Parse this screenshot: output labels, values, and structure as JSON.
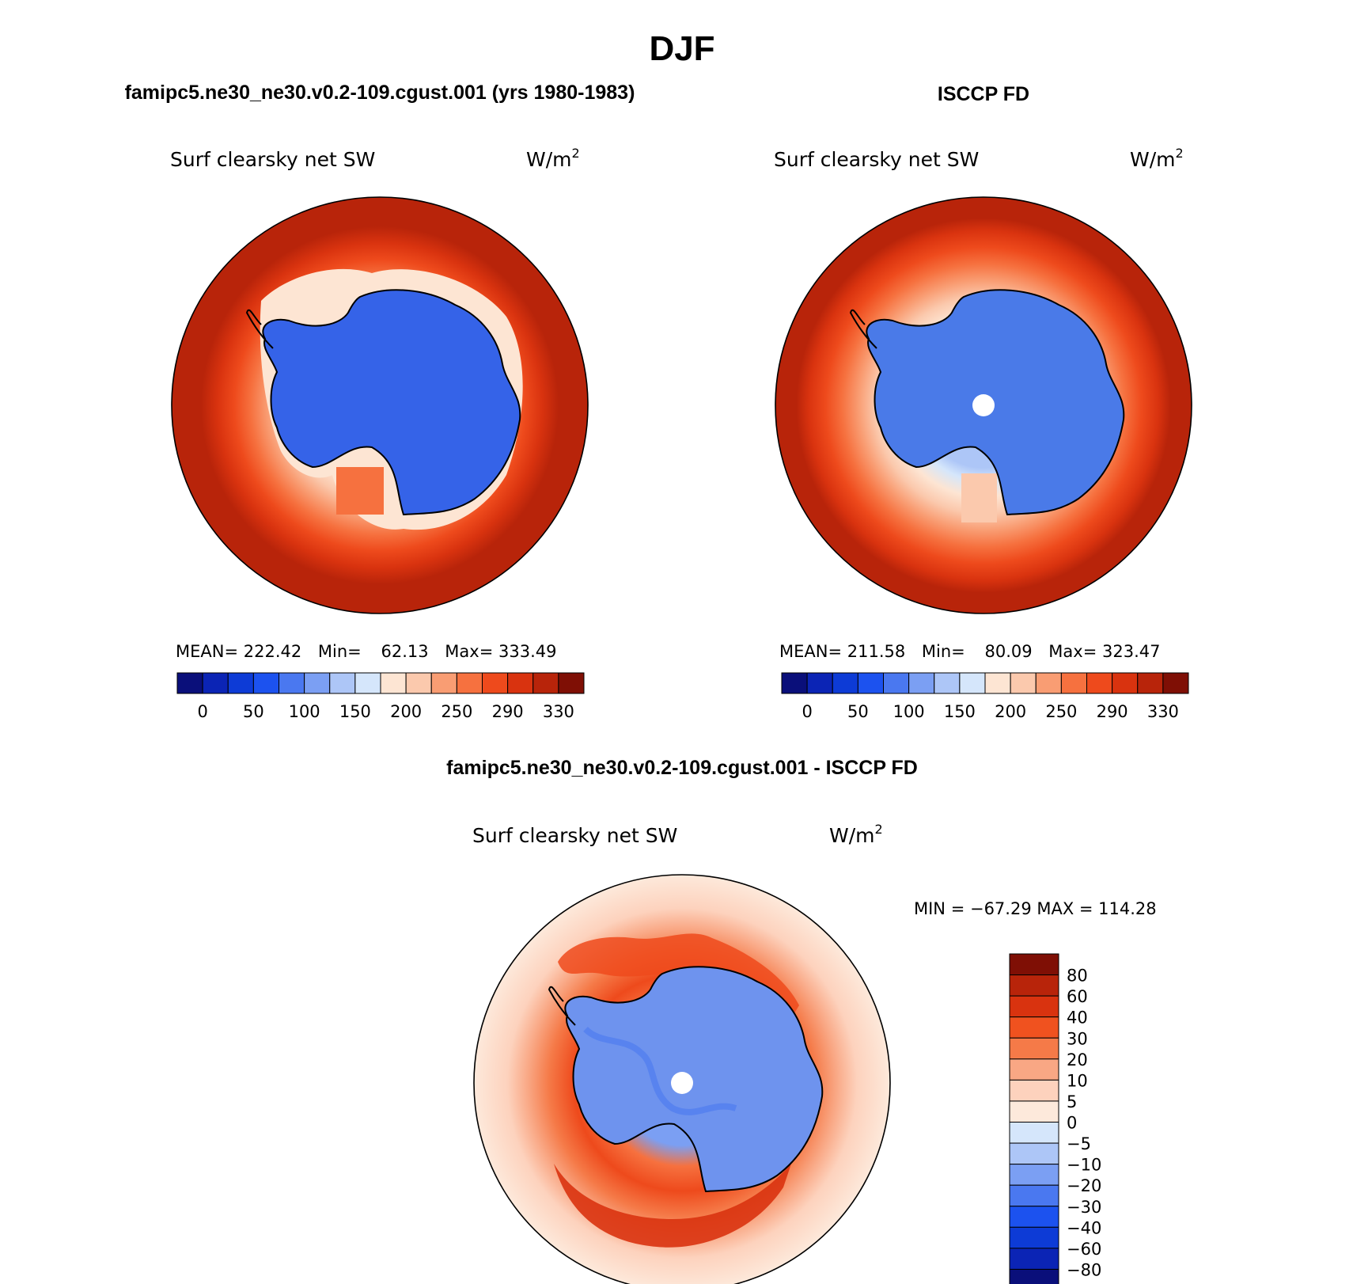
{
  "page_title": "DJF",
  "panels": [
    {
      "id": "model",
      "heading": "famipc5.ne30_ne30.v0.2-109.cgust.001 (yrs 1980-1983)",
      "variable": "Surf clearsky net SW",
      "units_base": "W/m",
      "units_exp": "2",
      "stats": {
        "mean_label": "MEAN=",
        "mean": "222.42",
        "min_label": "Min=",
        "min": "62.13",
        "max_label": "Max=",
        "max": "333.49"
      },
      "colorbar_ticks": [
        "0",
        "50",
        "100",
        "150",
        "200",
        "250",
        "290",
        "330"
      ]
    },
    {
      "id": "obs",
      "heading": "ISCCP FD",
      "variable": "Surf clearsky net SW",
      "units_base": "W/m",
      "units_exp": "2",
      "stats": {
        "mean_label": "MEAN=",
        "mean": "211.58",
        "min_label": "Min=",
        "min": "80.09",
        "max_label": "Max=",
        "max": "323.47"
      },
      "colorbar_ticks": [
        "0",
        "50",
        "100",
        "150",
        "200",
        "250",
        "290",
        "330"
      ]
    }
  ],
  "diff_panel": {
    "heading": "famipc5.ne30_ne30.v0.2-109.cgust.001 - ISCCP FD",
    "variable": "Surf clearsky net SW",
    "units_base": "W/m",
    "units_exp": "2",
    "minmax": "MIN = −67.29 MAX = 114.28",
    "colorbar_ticks": [
      "80",
      "60",
      "40",
      "30",
      "20",
      "10",
      "5",
      "0",
      "−5",
      "−10",
      "−20",
      "−30",
      "−40",
      "−60",
      "−80"
    ]
  },
  "colors": {
    "abs_scale": [
      "#0a0f7a",
      "#0b24b5",
      "#0d3bd6",
      "#1c52ef",
      "#4a78f0",
      "#7b9ff3",
      "#adc6f7",
      "#d5e6fb",
      "#fde5d3",
      "#fbc9ad",
      "#f99d73",
      "#f6713f",
      "#ee4a1c",
      "#d9330f",
      "#b8240a",
      "#7f0f05"
    ],
    "diff_scale": [
      "#7f0f05",
      "#b8240a",
      "#d9330f",
      "#f0521f",
      "#f57a48",
      "#f9a784",
      "#fdd2bd",
      "#fde9db",
      "#d5e6fb",
      "#adc6f7",
      "#7b9ff3",
      "#4a78f0",
      "#1c52ef",
      "#0d3bd6",
      "#0b24b5",
      "#0a0f7a"
    ],
    "land_model": "#3563e8",
    "land_obs": "#4a7ae8",
    "land_diff": "#6e93ee",
    "ocean_outer_model": "#b8240a",
    "ocean_outer_obs": "#b8240a",
    "ocean_outer_diff": "#fde5d3"
  }
}
